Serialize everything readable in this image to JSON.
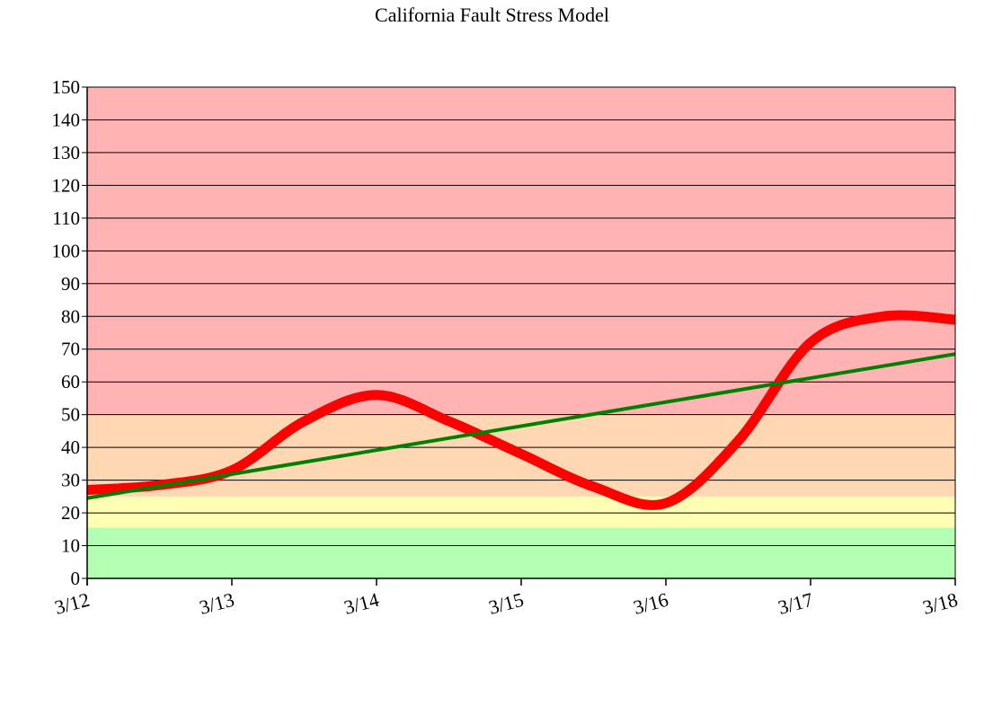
{
  "chart_data": {
    "type": "line",
    "title": "California Fault Stress Model",
    "xlabel": "",
    "ylabel": "",
    "x_ticks": [
      "3/12",
      "3/13",
      "3/14",
      "3/15",
      "3/16",
      "3/17",
      "3/18"
    ],
    "ylim": [
      0,
      150
    ],
    "y_ticks": [
      0,
      10,
      20,
      30,
      40,
      50,
      60,
      70,
      80,
      90,
      100,
      110,
      120,
      130,
      140,
      150
    ],
    "grid": true,
    "bands": [
      {
        "from": 0,
        "to": 15.5,
        "color": "#b3ffb3"
      },
      {
        "from": 15.5,
        "to": 25,
        "color": "#ffffb3"
      },
      {
        "from": 25,
        "to": 50,
        "color": "#ffd8b3"
      },
      {
        "from": 50,
        "to": 150,
        "color": "#ffb3b3"
      }
    ],
    "series": [
      {
        "color": "#ff0000",
        "style": "thick-smooth",
        "x": [
          "3/12",
          "3/12 12:00",
          "3/13",
          "3/13 12:00",
          "3/14",
          "3/14 12:00",
          "3/15",
          "3/15 12:00",
          "3/16",
          "3/16 12:00",
          "3/17",
          "3/17 12:00",
          "3/18"
        ],
        "values": [
          27.0,
          28.5,
          33.0,
          48.0,
          56.0,
          48.0,
          38.0,
          28.0,
          23.0,
          42.0,
          72.0,
          80.0,
          79.0
        ]
      },
      {
        "color": "#008000",
        "style": "trend",
        "x": [
          "3/12",
          "3/18"
        ],
        "values": [
          24.5,
          68.5
        ]
      }
    ]
  }
}
